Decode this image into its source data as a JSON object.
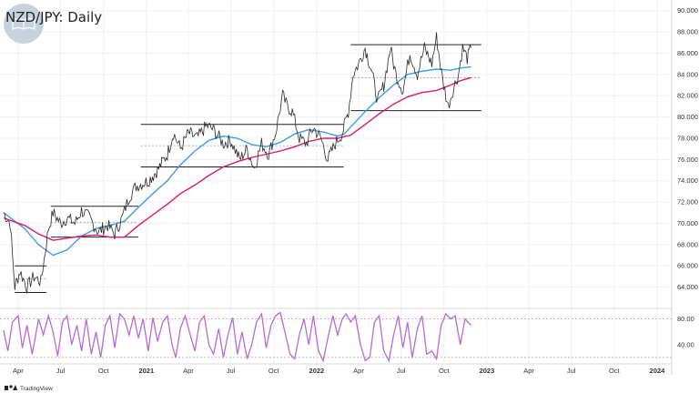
{
  "header": {
    "title": "NZD/JPY: Daily"
  },
  "branding": {
    "label": "TradingView"
  },
  "colors": {
    "price": "#2a2a2a",
    "ma_fast": "#3d9be9",
    "ma_slow": "#e0186c",
    "stoch": "#b86ad6",
    "range_lines": "#222222",
    "gridlines": "#f0f0f0",
    "logo_circle": "#c8d2dc"
  },
  "chart_data": {
    "type": "line",
    "title": "NZD/JPY: Daily",
    "xlabel": "",
    "ylabel": "",
    "grid": false,
    "legend": "none",
    "x_ticks": [
      {
        "label": "Apr",
        "bold": false
      },
      {
        "label": "Jul",
        "bold": false
      },
      {
        "label": "Oct",
        "bold": false
      },
      {
        "label": "2021",
        "bold": true
      },
      {
        "label": "Apr",
        "bold": false
      },
      {
        "label": "Jul",
        "bold": false
      },
      {
        "label": "Oct",
        "bold": false
      },
      {
        "label": "2022",
        "bold": true
      },
      {
        "label": "Apr",
        "bold": false
      },
      {
        "label": "Jul",
        "bold": false
      },
      {
        "label": "Oct",
        "bold": false
      },
      {
        "label": "2023",
        "bold": true
      },
      {
        "label": "Apr",
        "bold": false
      },
      {
        "label": "Jul",
        "bold": false
      },
      {
        "label": "Oct",
        "bold": false
      },
      {
        "label": "2024",
        "bold": true
      }
    ],
    "x_range": [
      "2020-03",
      "2024-01"
    ],
    "price_panel": {
      "ylim": [
        62.0,
        91.0
      ],
      "y_ticks": [
        "64.000",
        "66.000",
        "68.000",
        "70.000",
        "72.000",
        "74.000",
        "76.000",
        "78.000",
        "80.000",
        "82.000",
        "84.000",
        "86.000",
        "88.000",
        "90.000"
      ],
      "y_tick_values": [
        64,
        66,
        68,
        70,
        72,
        74,
        76,
        78,
        80,
        82,
        84,
        86,
        88,
        90
      ],
      "price_path": [
        [
          "2020-03",
          71.0
        ],
        [
          "2020-03-15",
          70.0
        ],
        [
          "2020-03-25",
          64.0
        ],
        [
          "2020-04-05",
          65.5
        ],
        [
          "2020-04-20",
          64.0
        ],
        [
          "2020-05-05",
          65.0
        ],
        [
          "2020-05-20",
          64.5
        ],
        [
          "2020-06-05",
          69.5
        ],
        [
          "2020-06-15",
          71.0
        ],
        [
          "2020-07-01",
          70.0
        ],
        [
          "2020-07-15",
          70.5
        ],
        [
          "2020-08-01",
          70.0
        ],
        [
          "2020-08-15",
          71.2
        ],
        [
          "2020-09-01",
          70.5
        ],
        [
          "2020-09-20",
          69.2
        ],
        [
          "2020-10-10",
          69.8
        ],
        [
          "2020-10-25",
          69.0
        ],
        [
          "2020-11-10",
          70.5
        ],
        [
          "2020-11-25",
          72.5
        ],
        [
          "2020-12-10",
          73.5
        ],
        [
          "2021-01-05",
          74.0
        ],
        [
          "2021-01-25",
          75.0
        ],
        [
          "2021-02-15",
          76.5
        ],
        [
          "2021-02-28",
          78.5
        ],
        [
          "2021-03-15",
          77.0
        ],
        [
          "2021-04-01",
          78.5
        ],
        [
          "2021-04-20",
          78.0
        ],
        [
          "2021-05-10",
          79.2
        ],
        [
          "2021-05-25",
          78.8
        ],
        [
          "2021-06-15",
          77.5
        ],
        [
          "2021-07-01",
          77.8
        ],
        [
          "2021-07-20",
          76.0
        ],
        [
          "2021-08-05",
          77.0
        ],
        [
          "2021-08-20",
          75.2
        ],
        [
          "2021-09-05",
          77.5
        ],
        [
          "2021-09-20",
          76.5
        ],
        [
          "2021-10-05",
          78.5
        ],
        [
          "2021-10-20",
          82.0
        ],
        [
          "2021-10-30",
          81.0
        ],
        [
          "2021-11-10",
          80.5
        ],
        [
          "2021-11-25",
          78.0
        ],
        [
          "2021-12-10",
          77.5
        ],
        [
          "2021-12-25",
          79.0
        ],
        [
          "2022-01-10",
          78.0
        ],
        [
          "2022-01-25",
          76.0
        ],
        [
          "2022-02-10",
          77.5
        ],
        [
          "2022-02-25",
          78.5
        ],
        [
          "2022-03-10",
          80.5
        ],
        [
          "2022-03-20",
          84.0
        ],
        [
          "2022-04-01",
          85.0
        ],
        [
          "2022-04-15",
          86.5
        ],
        [
          "2022-04-28",
          84.5
        ],
        [
          "2022-05-12",
          81.5
        ],
        [
          "2022-05-25",
          83.0
        ],
        [
          "2022-06-08",
          86.5
        ],
        [
          "2022-06-20",
          84.0
        ],
        [
          "2022-07-05",
          82.5
        ],
        [
          "2022-07-20",
          86.0
        ],
        [
          "2022-08-05",
          84.0
        ],
        [
          "2022-08-20",
          86.5
        ],
        [
          "2022-09-05",
          85.0
        ],
        [
          "2022-09-15",
          87.5
        ],
        [
          "2022-09-28",
          83.5
        ],
        [
          "2022-10-10",
          81.0
        ],
        [
          "2022-10-20",
          82.5
        ],
        [
          "2022-11-01",
          84.0
        ],
        [
          "2022-11-10",
          86.5
        ],
        [
          "2022-11-20",
          85.5
        ],
        [
          "2022-11-28",
          86.5
        ]
      ],
      "moving_averages": [
        {
          "color_key": "ma_fast",
          "points": [
            [
              "2020-03",
              71.0
            ],
            [
              "2020-04-15",
              69.5
            ],
            [
              "2020-05-15",
              68.0
            ],
            [
              "2020-06-15",
              67.0
            ],
            [
              "2020-07-15",
              67.5
            ],
            [
              "2020-08-15",
              68.8
            ],
            [
              "2020-09-15",
              69.5
            ],
            [
              "2020-10-15",
              69.8
            ],
            [
              "2020-11-15",
              70.2
            ],
            [
              "2020-12-15",
              71.5
            ],
            [
              "2021-01-15",
              72.8
            ],
            [
              "2021-02-15",
              74.0
            ],
            [
              "2021-03-15",
              75.5
            ],
            [
              "2021-04-15",
              76.8
            ],
            [
              "2021-05-15",
              77.8
            ],
            [
              "2021-06-15",
              78.2
            ],
            [
              "2021-07-15",
              78.0
            ],
            [
              "2021-08-15",
              77.4
            ],
            [
              "2021-09-15",
              77.2
            ],
            [
              "2021-10-15",
              77.6
            ],
            [
              "2021-11-15",
              78.4
            ],
            [
              "2021-12-15",
              78.8
            ],
            [
              "2022-01-15",
              78.6
            ],
            [
              "2022-02-15",
              78.2
            ],
            [
              "2022-03-01",
              78.4
            ],
            [
              "2022-03-20",
              79.3
            ],
            [
              "2022-04-15",
              80.5
            ],
            [
              "2022-05-15",
              81.8
            ],
            [
              "2022-06-15",
              83.0
            ],
            [
              "2022-07-15",
              84.0
            ],
            [
              "2022-08-15",
              84.3
            ],
            [
              "2022-09-15",
              84.5
            ],
            [
              "2022-10-15",
              84.4
            ],
            [
              "2022-11-05",
              84.6
            ],
            [
              "2022-11-28",
              84.7
            ]
          ]
        },
        {
          "color_key": "ma_slow",
          "points": [
            [
              "2020-03",
              70.5
            ],
            [
              "2020-04-15",
              69.8
            ],
            [
              "2020-05-15",
              69.0
            ],
            [
              "2020-06-15",
              68.4
            ],
            [
              "2020-07-15",
              68.6
            ],
            [
              "2020-08-15",
              68.8
            ],
            [
              "2020-09-15",
              68.9
            ],
            [
              "2020-10-15",
              68.7
            ],
            [
              "2020-11-15",
              68.7
            ],
            [
              "2020-12-15",
              69.8
            ],
            [
              "2021-01-15",
              70.8
            ],
            [
              "2021-02-15",
              71.8
            ],
            [
              "2021-03-15",
              72.8
            ],
            [
              "2021-04-15",
              73.6
            ],
            [
              "2021-05-15",
              74.5
            ],
            [
              "2021-06-15",
              75.3
            ],
            [
              "2021-07-15",
              75.8
            ],
            [
              "2021-08-15",
              76.2
            ],
            [
              "2021-09-15",
              76.5
            ],
            [
              "2021-10-15",
              76.8
            ],
            [
              "2021-11-15",
              77.2
            ],
            [
              "2021-12-15",
              77.7
            ],
            [
              "2022-01-15",
              78.0
            ],
            [
              "2022-02-15",
              78.0
            ],
            [
              "2022-03-15",
              78.3
            ],
            [
              "2022-04-15",
              79.3
            ],
            [
              "2022-05-15",
              80.3
            ],
            [
              "2022-06-15",
              81.2
            ],
            [
              "2022-07-15",
              81.9
            ],
            [
              "2022-08-15",
              82.3
            ],
            [
              "2022-09-15",
              82.5
            ],
            [
              "2022-10-15",
              83.0
            ],
            [
              "2022-11-05",
              83.4
            ],
            [
              "2022-11-28",
              83.7
            ]
          ]
        }
      ],
      "range_boxes": [
        {
          "start": "2020-03-25",
          "end": "2020-06-01",
          "top": 66.0,
          "bottom": 63.5,
          "mid": 64.8
        },
        {
          "start": "2020-06-10",
          "end": "2020-12-15",
          "top": 71.6,
          "bottom": 68.7,
          "mid": 70.1
        },
        {
          "start": "2020-12-20",
          "end": "2022-02-28",
          "top": 79.3,
          "bottom": 75.3,
          "mid": 77.3
        },
        {
          "start": "2022-03-15",
          "end": "2022-12-20",
          "top": 86.8,
          "bottom": 80.6,
          "mid": 83.7
        }
      ]
    },
    "stochastic_panel": {
      "ylim": [
        10,
        95
      ],
      "y_ticks": [
        "40.00",
        "80.00"
      ],
      "y_tick_values": [
        40,
        80
      ],
      "levels": [
        80,
        20
      ],
      "series": [
        [
          "2020-03",
          62
        ],
        [
          "2020-03-10",
          30
        ],
        [
          "2020-03-20",
          75
        ],
        [
          "2020-04-01",
          85
        ],
        [
          "2020-04-10",
          35
        ],
        [
          "2020-04-20",
          70
        ],
        [
          "2020-05-01",
          25
        ],
        [
          "2020-05-15",
          80
        ],
        [
          "2020-05-25",
          55
        ],
        [
          "2020-06-05",
          85
        ],
        [
          "2020-06-15",
          60
        ],
        [
          "2020-06-25",
          22
        ],
        [
          "2020-07-05",
          75
        ],
        [
          "2020-07-15",
          85
        ],
        [
          "2020-07-25",
          40
        ],
        [
          "2020-08-05",
          70
        ],
        [
          "2020-08-15",
          30
        ],
        [
          "2020-08-25",
          80
        ],
        [
          "2020-09-05",
          25
        ],
        [
          "2020-09-15",
          60
        ],
        [
          "2020-09-25",
          20
        ],
        [
          "2020-10-05",
          70
        ],
        [
          "2020-10-15",
          85
        ],
        [
          "2020-10-25",
          35
        ],
        [
          "2020-11-05",
          88
        ],
        [
          "2020-11-15",
          80
        ],
        [
          "2020-11-25",
          55
        ],
        [
          "2020-12-05",
          85
        ],
        [
          "2020-12-15",
          50
        ],
        [
          "2020-12-25",
          80
        ],
        [
          "2021-01-05",
          30
        ],
        [
          "2021-01-15",
          82
        ],
        [
          "2021-01-25",
          45
        ],
        [
          "2021-02-05",
          75
        ],
        [
          "2021-02-15",
          85
        ],
        [
          "2021-02-25",
          40
        ],
        [
          "2021-03-05",
          20
        ],
        [
          "2021-03-15",
          65
        ],
        [
          "2021-03-25",
          85
        ],
        [
          "2021-04-05",
          55
        ],
        [
          "2021-04-15",
          30
        ],
        [
          "2021-04-25",
          75
        ],
        [
          "2021-05-05",
          85
        ],
        [
          "2021-05-15",
          40
        ],
        [
          "2021-05-25",
          25
        ],
        [
          "2021-06-05",
          65
        ],
        [
          "2021-06-15",
          20
        ],
        [
          "2021-06-25",
          55
        ],
        [
          "2021-07-05",
          82
        ],
        [
          "2021-07-15",
          25
        ],
        [
          "2021-07-25",
          60
        ],
        [
          "2021-08-05",
          18
        ],
        [
          "2021-08-15",
          40
        ],
        [
          "2021-08-25",
          75
        ],
        [
          "2021-09-05",
          88
        ],
        [
          "2021-09-15",
          35
        ],
        [
          "2021-09-25",
          70
        ],
        [
          "2021-10-05",
          85
        ],
        [
          "2021-10-15",
          90
        ],
        [
          "2021-10-25",
          60
        ],
        [
          "2021-11-05",
          25
        ],
        [
          "2021-11-15",
          18
        ],
        [
          "2021-11-25",
          55
        ],
        [
          "2021-12-05",
          80
        ],
        [
          "2021-12-15",
          40
        ],
        [
          "2021-12-25",
          85
        ],
        [
          "2022-01-05",
          30
        ],
        [
          "2022-01-15",
          15
        ],
        [
          "2022-01-25",
          50
        ],
        [
          "2022-02-05",
          85
        ],
        [
          "2022-02-15",
          55
        ],
        [
          "2022-02-25",
          80
        ],
        [
          "2022-03-05",
          88
        ],
        [
          "2022-03-15",
          75
        ],
        [
          "2022-03-25",
          85
        ],
        [
          "2022-04-05",
          40
        ],
        [
          "2022-04-15",
          15
        ],
        [
          "2022-04-25",
          20
        ],
        [
          "2022-05-05",
          75
        ],
        [
          "2022-05-15",
          85
        ],
        [
          "2022-05-25",
          30
        ],
        [
          "2022-06-05",
          15
        ],
        [
          "2022-06-15",
          55
        ],
        [
          "2022-06-25",
          85
        ],
        [
          "2022-07-05",
          35
        ],
        [
          "2022-07-15",
          75
        ],
        [
          "2022-07-25",
          20
        ],
        [
          "2022-08-05",
          65
        ],
        [
          "2022-08-15",
          85
        ],
        [
          "2022-08-25",
          25
        ],
        [
          "2022-09-05",
          30
        ],
        [
          "2022-09-15",
          18
        ],
        [
          "2022-09-25",
          70
        ],
        [
          "2022-10-05",
          88
        ],
        [
          "2022-10-15",
          80
        ],
        [
          "2022-10-25",
          85
        ],
        [
          "2022-11-05",
          40
        ],
        [
          "2022-11-15",
          80
        ],
        [
          "2022-11-28",
          70
        ]
      ]
    }
  }
}
